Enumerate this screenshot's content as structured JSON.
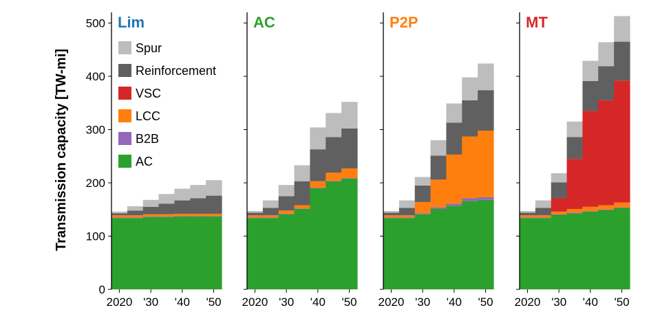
{
  "chart_data": {
    "type": "area",
    "ylabel": "Transmission capacity [TW-mi]",
    "ylim": [
      0,
      520
    ],
    "yticks": [
      0,
      100,
      200,
      300,
      400,
      500
    ],
    "x": [
      2020,
      2025,
      2030,
      2035,
      2040,
      2045,
      2050
    ],
    "xtick_values": [
      2020,
      2030,
      2040,
      2050
    ],
    "xtick_labels": [
      "2020",
      "'30",
      "'40",
      "'50"
    ],
    "legend": [
      "Spur",
      "Reinforcement",
      "VSC",
      "LCC",
      "B2B",
      "AC"
    ],
    "colors": {
      "AC": "#2ca02c",
      "B2B": "#9467bd",
      "LCC": "#ff7f0e",
      "VSC": "#d62728",
      "Reinforcement": "#606060",
      "Spur": "#bdbdbd"
    },
    "panels": [
      {
        "title": "Lim",
        "title_color": "#1f77b4",
        "series": {
          "AC": [
            134,
            134,
            136,
            136,
            137,
            137,
            137
          ],
          "B2B": [
            1,
            1,
            1,
            1,
            1,
            1,
            1
          ],
          "LCC": [
            4,
            4,
            4,
            4,
            4,
            4,
            4
          ],
          "VSC": [
            0,
            0,
            0,
            0,
            0,
            0,
            0
          ],
          "Reinforcement": [
            4,
            9,
            14,
            20,
            25,
            29,
            34
          ],
          "Spur": [
            3,
            8,
            13,
            18,
            22,
            25,
            29
          ]
        }
      },
      {
        "title": "AC",
        "title_color": "#2ca02c",
        "series": {
          "AC": [
            134,
            134,
            141,
            151,
            190,
            203,
            208
          ],
          "B2B": [
            1,
            1,
            1,
            1,
            1,
            1,
            1
          ],
          "LCC": [
            4,
            4,
            6,
            6,
            12,
            15,
            18
          ],
          "VSC": [
            0,
            0,
            0,
            0,
            0,
            0,
            0
          ],
          "Reinforcement": [
            5,
            14,
            27,
            45,
            60,
            67,
            75
          ],
          "Spur": [
            3,
            14,
            21,
            30,
            41,
            45,
            50
          ]
        }
      },
      {
        "title": "P2P",
        "title_color": "#ff7f0e",
        "series": {
          "AC": [
            134,
            134,
            141,
            151,
            157,
            166,
            168
          ],
          "B2B": [
            1,
            1,
            2,
            3,
            4,
            5,
            5
          ],
          "LCC": [
            4,
            4,
            21,
            52,
            92,
            116,
            125
          ],
          "VSC": [
            0,
            0,
            0,
            0,
            0,
            0,
            0
          ],
          "Reinforcement": [
            5,
            14,
            31,
            45,
            60,
            68,
            76
          ],
          "Spur": [
            3,
            14,
            16,
            29,
            36,
            43,
            50
          ]
        }
      },
      {
        "title": "MT",
        "title_color": "#d62728",
        "series": {
          "AC": [
            134,
            134,
            140,
            143,
            146,
            149,
            153
          ],
          "B2B": [
            1,
            1,
            1,
            1,
            1,
            1,
            1
          ],
          "LCC": [
            4,
            4,
            5,
            7,
            8,
            8,
            9
          ],
          "VSC": [
            0,
            0,
            25,
            94,
            180,
            197,
            229
          ],
          "Reinforcement": [
            5,
            14,
            30,
            41,
            56,
            64,
            73
          ],
          "Spur": [
            3,
            14,
            17,
            29,
            38,
            45,
            48
          ]
        }
      }
    ]
  }
}
